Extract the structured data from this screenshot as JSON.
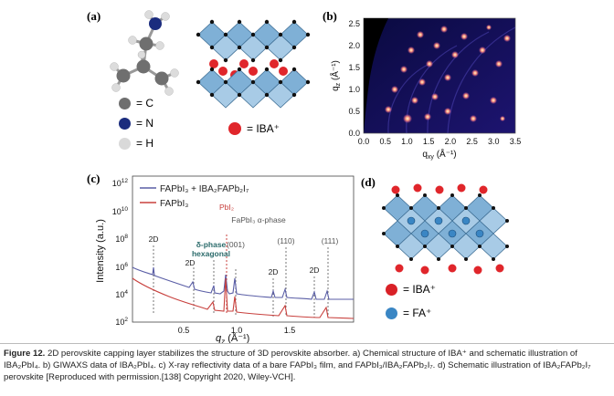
{
  "panels": {
    "a": {
      "label": "(a)",
      "legend": [
        {
          "sym": "= C",
          "color": "#6f6f6f"
        },
        {
          "sym": "= N",
          "color": "#1b2c7e"
        },
        {
          "sym": "= H",
          "color": "#d9d9d9"
        }
      ],
      "iba_legend": "= IBA⁺"
    },
    "b": {
      "label": "(b)",
      "xlabel": "q",
      "xlabel_sub": "xy",
      "xlabel_unit": "(Å⁻¹)",
      "ylabel": "q",
      "ylabel_sub": "z",
      "ylabel_unit": "(Å⁻¹)",
      "xticks": [
        "0.0",
        "0.5",
        "1.0",
        "1.5",
        "2.0",
        "2.5",
        "3.0",
        "3.5"
      ],
      "yticks": [
        "0.0",
        "0.5",
        "1.0",
        "1.5",
        "2.0",
        "2.5"
      ]
    },
    "c": {
      "label": "(c)",
      "legend": [
        {
          "name": "FAPbI₃ + IBA₂FAPb₂I₇",
          "color": "#5a5ea6"
        },
        {
          "name": "FAPbI₃",
          "color": "#c8403d"
        }
      ],
      "ylabel": "Intensity (a.u.)",
      "xlabel_q": "q",
      "xlabel_sub": "z",
      "xlabel_unit": "(Å⁻¹)",
      "xticks": [
        "0.5",
        "1.0",
        "1.5"
      ],
      "yticks": [
        {
          "base": "10",
          "exp": "12"
        },
        {
          "base": "10",
          "exp": "10"
        },
        {
          "base": "10",
          "exp": "8"
        },
        {
          "base": "10",
          "exp": "6"
        },
        {
          "base": "10",
          "exp": "4"
        },
        {
          "base": "10",
          "exp": "2"
        }
      ],
      "annotations": {
        "twoD": "2D",
        "delta1": "δ-phase",
        "delta2": "hexagonal",
        "pbi2": "PbI₂",
        "alpha": "FaPbI₃ α-phase",
        "p001": "(001)",
        "p110": "(110)",
        "p111": "(111)"
      }
    },
    "d": {
      "label": "(d)",
      "legend": [
        {
          "sym": "= IBA⁺",
          "color": "#d92127"
        },
        {
          "sym": "= FA⁺",
          "color": "#3a86c4"
        }
      ]
    }
  },
  "caption": {
    "lead": "Figure 12.",
    "text": "2D perovskite capping layer stabilizes the structure of 3D perovskite absorber. a) Chemical structure of IBA⁺ and schematic illustration of IBA₂PbI₄. b) GIWAXS data of IBA₂PbI₄. c) X-ray reflectivity data of a bare FAPbI₃ film, and FAPbI₃/IBA₂FAPb₂I₇. d) Schematic illustration of IBA₂FAPb₂I₇ perovskite [Reproduced with permission.[138] Copyright 2020, Wiley-VCH]."
  }
}
